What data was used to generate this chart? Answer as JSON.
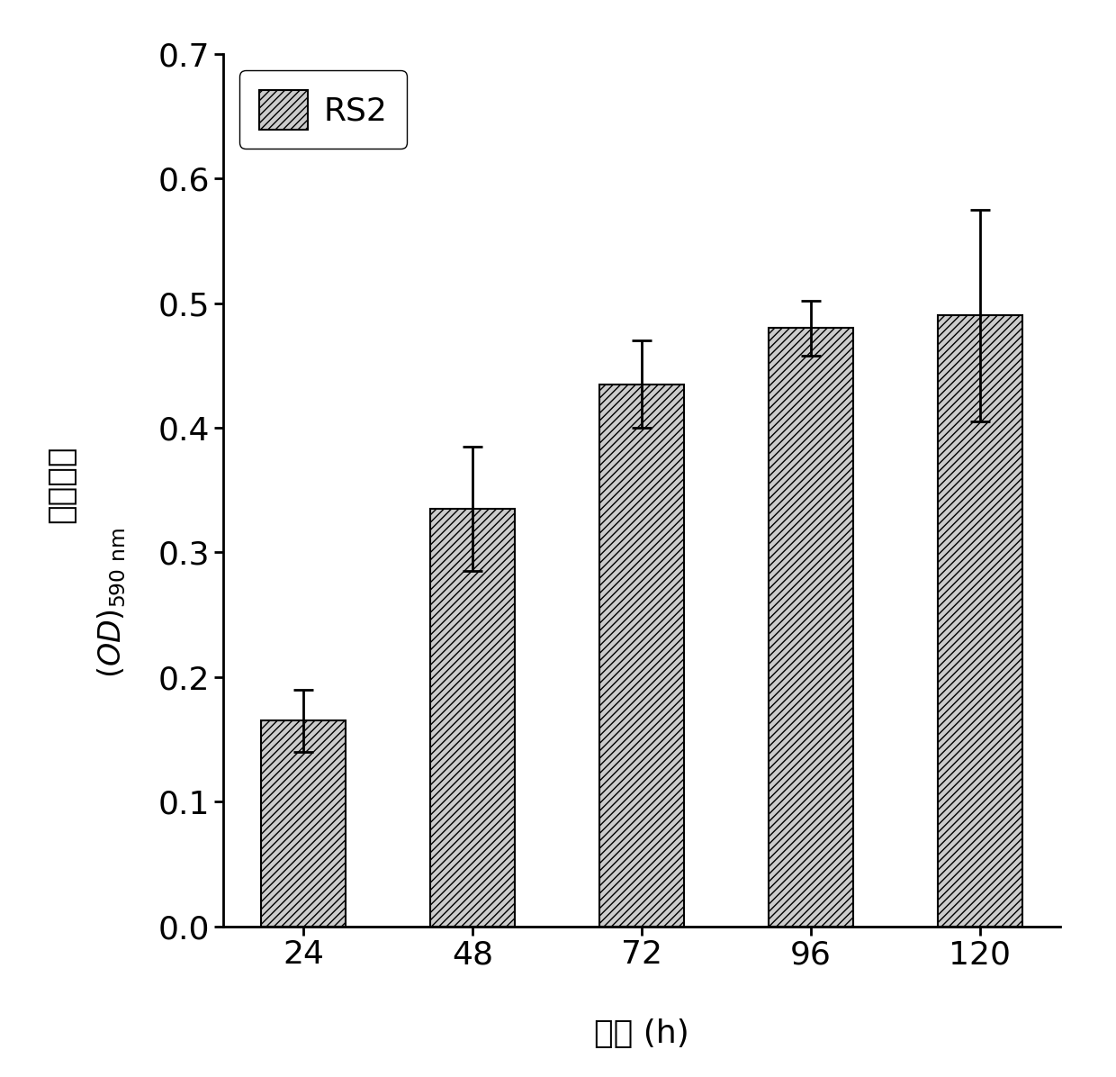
{
  "categories": [
    "24",
    "48",
    "72",
    "96",
    "120"
  ],
  "values": [
    0.165,
    0.335,
    0.435,
    0.48,
    0.49
  ],
  "errors": [
    0.025,
    0.05,
    0.035,
    0.022,
    0.085
  ],
  "xlabel_cn": "时间",
  "xlabel_en": " (h)",
  "ylabel_cn": "成膜能力",
  "ylim": [
    0.0,
    0.7
  ],
  "yticks": [
    0.0,
    0.1,
    0.2,
    0.3,
    0.4,
    0.5,
    0.6,
    0.7
  ],
  "legend_label": "RS2",
  "bar_color": "#cccccc",
  "bar_hatch": "////",
  "bar_edgecolor": "#000000",
  "error_color": "#000000",
  "background_color": "#ffffff",
  "tick_fontsize": 26,
  "label_fontsize": 26,
  "legend_fontsize": 26
}
